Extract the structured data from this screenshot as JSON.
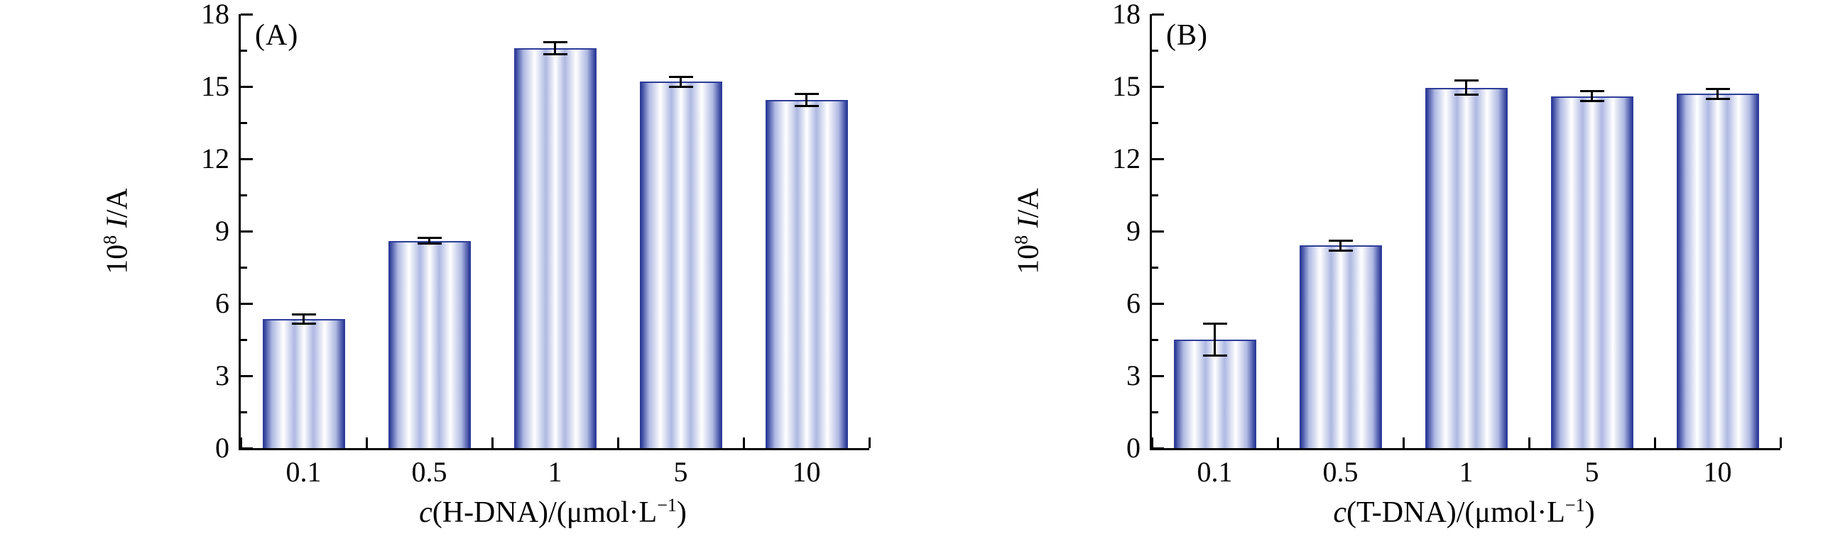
{
  "figure": {
    "background": "#ffffff",
    "axis_color": "#000000",
    "error_bar_color": "#000000"
  },
  "chart_data": [
    {
      "type": "bar",
      "panel_label": "(A)",
      "title": "",
      "categories": [
        "0.1",
        "0.5",
        "1",
        "5",
        "10"
      ],
      "values": [
        5.35,
        8.6,
        16.6,
        15.2,
        14.45
      ],
      "errors": [
        0.18,
        0.12,
        0.25,
        0.2,
        0.25
      ],
      "ylim": [
        0,
        18
      ],
      "yticks": [
        0,
        3,
        6,
        9,
        12,
        15,
        18
      ],
      "ylabel": "10^8 I/A",
      "xlabel": "c(H-DNA)/(umol.L^-1)",
      "ylabel_parts": {
        "base": "10",
        "exp": "8",
        "symbol": "I",
        "unit": "/A"
      },
      "xlabel_parts": {
        "italic": "c",
        "mid": "(H-DNA)/(μmol·L",
        "sup": "−1",
        "post": ")"
      },
      "grid": false,
      "legend": null,
      "colors": {
        "bar_edge": "#2e3d99",
        "bar_mid": "#aeb8e2",
        "bar_light": "#ffffff"
      }
    },
    {
      "type": "bar",
      "panel_label": "(B)",
      "title": "",
      "categories": [
        "0.1",
        "0.5",
        "1",
        "5",
        "10"
      ],
      "values": [
        4.5,
        8.4,
        14.95,
        14.6,
        14.7
      ],
      "errors": [
        0.65,
        0.2,
        0.3,
        0.2,
        0.2
      ],
      "ylim": [
        0,
        18
      ],
      "yticks": [
        0,
        3,
        6,
        9,
        12,
        15,
        18
      ],
      "ylabel": "10^8 I/A",
      "xlabel": "c(T-DNA)/(umol.L^-1)",
      "ylabel_parts": {
        "base": "10",
        "exp": "8",
        "symbol": "I",
        "unit": "/A"
      },
      "xlabel_parts": {
        "italic": "c",
        "mid": "(T-DNA)/(μmol·L",
        "sup": "−1",
        "post": ")"
      },
      "grid": false,
      "legend": null,
      "colors": {
        "bar_edge": "#2e3d99",
        "bar_mid": "#aeb8e2",
        "bar_light": "#ffffff"
      }
    }
  ]
}
